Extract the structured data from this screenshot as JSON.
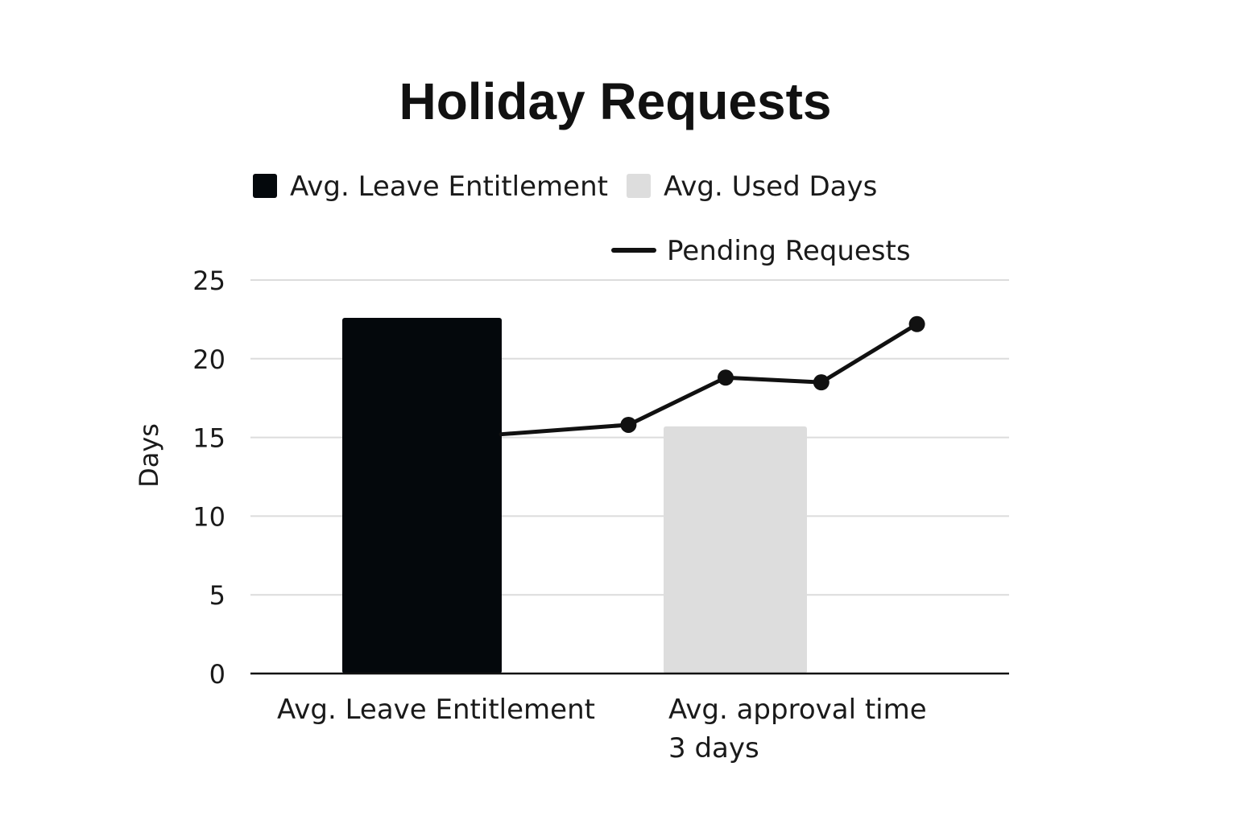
{
  "chart_data": {
    "type": "bar",
    "title": "Holiday Requests",
    "xlabel": "",
    "ylabel": "Days",
    "ylim": [
      0,
      25
    ],
    "yticks": [
      0,
      5,
      10,
      15,
      20,
      25
    ],
    "grid": true,
    "legend_position": "top",
    "categories": [
      {
        "label": "Avg. Leave Entitlement",
        "lines": [
          "Avg. Leave Entitlement"
        ]
      },
      {
        "label": "Avg. approval time 3 days",
        "lines": [
          "Avg. approval time",
          "3 days"
        ]
      }
    ],
    "series": [
      {
        "name": "Avg. Leave Entitlement",
        "type": "bar",
        "color": "#04080c",
        "values": [
          22.6,
          null
        ]
      },
      {
        "name": "Avg. Used Days",
        "type": "bar",
        "color": "#dddddd",
        "values": [
          null,
          15.7
        ]
      },
      {
        "name": "Pending Requests",
        "type": "line",
        "color": "#111111",
        "points": [
          {
            "position": 0.0,
            "value": 15.2,
            "marker": false
          },
          {
            "position": 0.88,
            "value": 15.8,
            "marker": true
          },
          {
            "position": 1.55,
            "value": 18.8,
            "marker": true
          },
          {
            "position": 2.21,
            "value": 18.5,
            "marker": true
          },
          {
            "position": 2.87,
            "value": 22.2,
            "marker": true
          }
        ]
      }
    ]
  }
}
